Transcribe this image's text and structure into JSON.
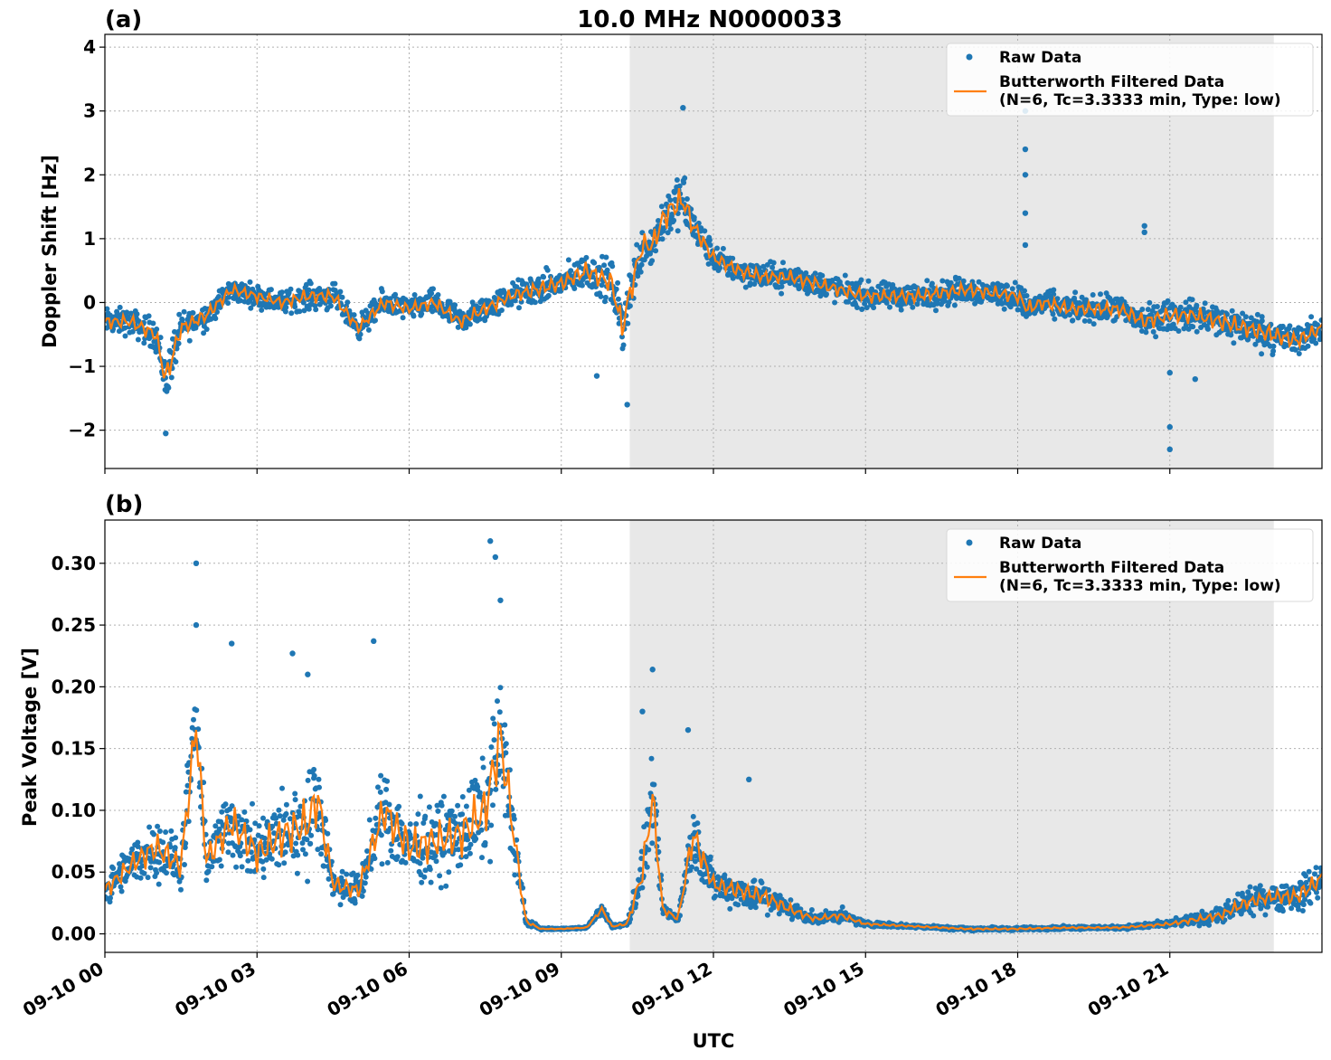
{
  "figure": {
    "title": "10.0 MHz N0000033",
    "xlabel": "UTC",
    "x_range_hours": [
      0,
      24
    ],
    "x_ticks": [
      {
        "hour": 0,
        "label": "09-10 00"
      },
      {
        "hour": 3,
        "label": "09-10 03"
      },
      {
        "hour": 6,
        "label": "09-10 06"
      },
      {
        "hour": 9,
        "label": "09-10 09"
      },
      {
        "hour": 12,
        "label": "09-10 12"
      },
      {
        "hour": 15,
        "label": "09-10 15"
      },
      {
        "hour": 18,
        "label": "09-10 18"
      },
      {
        "hour": 21,
        "label": "09-10 21"
      }
    ],
    "shaded_region_hours": [
      10.35,
      23.05
    ],
    "colors": {
      "raw": "#1f77b4",
      "filtered": "#ff7f0e",
      "shade": "#e8e8e8",
      "grid": "#b0b0b0"
    }
  },
  "legend": {
    "raw_label": "Raw Data",
    "filtered_label_line1": "Butterworth Filtered Data",
    "filtered_label_line2": "(N=6, Tc=3.3333 min, Type: low)"
  },
  "chart_data": [
    {
      "type": "scatter",
      "panel_label": "(a)",
      "ylabel": "Doppler Shift [Hz]",
      "ylim": [
        -2.6,
        4.2
      ],
      "y_ticks": [
        -2,
        -1,
        0,
        1,
        2,
        3,
        4
      ],
      "y_tick_labels": [
        "−2",
        "−1",
        "0",
        "1",
        "2",
        "3",
        "4"
      ],
      "grid": true,
      "legend_position": "top-right",
      "series": [
        {
          "name": "Raw Data",
          "x_hours": [
            0,
            0.5,
            1,
            1.2,
            1.5,
            2,
            2.5,
            3,
            3.5,
            4,
            4.5,
            5,
            5.5,
            6,
            6.5,
            7,
            7.5,
            8,
            8.5,
            9,
            9.5,
            10,
            10.2,
            10.4,
            10.6,
            10.8,
            11,
            11.2,
            11.4,
            11.6,
            12,
            12.5,
            13,
            13.5,
            14,
            15,
            16,
            17,
            18,
            18.2,
            18.5,
            19,
            19.5,
            20,
            20.5,
            21,
            21.5,
            22,
            22.5,
            23,
            23.5,
            24
          ],
          "y": [
            -0.3,
            -0.3,
            -0.5,
            -1.2,
            -0.4,
            -0.2,
            0.2,
            0.1,
            0.0,
            0.1,
            0.1,
            -0.4,
            0.0,
            -0.1,
            0.0,
            -0.3,
            -0.1,
            0.1,
            0.2,
            0.3,
            0.5,
            0.3,
            -0.4,
            0.3,
            0.9,
            0.9,
            1.3,
            1.5,
            1.6,
            1.2,
            0.7,
            0.5,
            0.4,
            0.4,
            0.3,
            0.1,
            0.1,
            0.2,
            0.1,
            -0.1,
            0.0,
            -0.1,
            -0.1,
            -0.1,
            -0.3,
            -0.2,
            -0.2,
            -0.3,
            -0.4,
            -0.5,
            -0.6,
            -0.4
          ],
          "spread": [
            0.3,
            0.3,
            0.35,
            0.6,
            0.35,
            0.3,
            0.25,
            0.25,
            0.25,
            0.3,
            0.3,
            0.25,
            0.3,
            0.25,
            0.3,
            0.3,
            0.3,
            0.3,
            0.35,
            0.35,
            0.4,
            0.5,
            0.6,
            0.6,
            0.5,
            0.5,
            0.55,
            0.6,
            0.6,
            0.45,
            0.3,
            0.3,
            0.3,
            0.3,
            0.3,
            0.3,
            0.3,
            0.3,
            0.3,
            0.35,
            0.3,
            0.3,
            0.3,
            0.3,
            0.35,
            0.35,
            0.35,
            0.4,
            0.4,
            0.4,
            0.35,
            0.3
          ],
          "outliers": [
            [
              1.2,
              -2.05
            ],
            [
              9.7,
              -1.15
            ],
            [
              10.3,
              -1.6
            ],
            [
              11.4,
              3.05
            ],
            [
              18.15,
              3.0
            ],
            [
              18.15,
              2.4
            ],
            [
              18.15,
              2.0
            ],
            [
              18.15,
              1.4
            ],
            [
              18.15,
              0.9
            ],
            [
              20.5,
              1.2
            ],
            [
              20.5,
              1.1
            ],
            [
              21.0,
              -1.1
            ],
            [
              21.0,
              -1.95
            ],
            [
              21.0,
              -2.3
            ],
            [
              21.5,
              -1.2
            ]
          ]
        },
        {
          "name": "Butterworth Filtered Data",
          "x_hours": [
            0,
            0.5,
            1,
            1.2,
            1.5,
            2,
            2.5,
            3,
            3.5,
            4,
            4.5,
            5,
            5.5,
            6,
            6.5,
            7,
            7.5,
            8,
            8.5,
            9,
            9.5,
            10,
            10.2,
            10.4,
            10.6,
            10.8,
            11,
            11.2,
            11.4,
            11.6,
            12,
            12.5,
            13,
            13.5,
            14,
            15,
            16,
            17,
            18,
            18.2,
            18.5,
            19,
            19.5,
            20,
            20.5,
            21,
            21.5,
            22,
            22.5,
            23,
            23.5,
            24
          ],
          "y": [
            -0.3,
            -0.3,
            -0.5,
            -1.2,
            -0.4,
            -0.2,
            0.2,
            0.1,
            0.0,
            0.1,
            0.1,
            -0.4,
            0.0,
            -0.1,
            0.0,
            -0.3,
            -0.1,
            0.1,
            0.2,
            0.3,
            0.5,
            0.3,
            -0.4,
            0.3,
            0.9,
            0.9,
            1.3,
            1.5,
            1.6,
            1.2,
            0.7,
            0.5,
            0.4,
            0.4,
            0.3,
            0.1,
            0.1,
            0.2,
            0.1,
            -0.1,
            0.0,
            -0.1,
            -0.1,
            -0.1,
            -0.3,
            -0.2,
            -0.2,
            -0.3,
            -0.4,
            -0.5,
            -0.6,
            -0.4
          ]
        }
      ]
    },
    {
      "type": "scatter",
      "panel_label": "(b)",
      "ylabel": "Peak Voltage [V]",
      "ylim": [
        -0.015,
        0.335
      ],
      "y_ticks": [
        0.0,
        0.05,
        0.1,
        0.15,
        0.2,
        0.25,
        0.3
      ],
      "y_tick_labels": [
        "0.00",
        "0.05",
        "0.10",
        "0.15",
        "0.20",
        "0.25",
        "0.30"
      ],
      "grid": true,
      "legend_position": "top-right",
      "series": [
        {
          "name": "Raw Data",
          "x_hours": [
            0,
            0.5,
            1,
            1.5,
            1.8,
            2,
            2.5,
            3,
            3.5,
            4,
            4.2,
            4.5,
            5,
            5.5,
            6,
            6.5,
            7,
            7.5,
            7.8,
            8,
            8.3,
            8.6,
            9,
            9.5,
            9.8,
            10,
            10.3,
            10.6,
            10.8,
            11,
            11.3,
            11.6,
            12,
            12.5,
            13,
            13.5,
            14,
            14.5,
            15,
            16,
            17,
            18,
            19,
            20,
            21,
            22,
            22.5,
            23,
            23.5,
            24
          ],
          "y": [
            0.035,
            0.055,
            0.07,
            0.055,
            0.17,
            0.06,
            0.09,
            0.065,
            0.08,
            0.09,
            0.11,
            0.04,
            0.035,
            0.1,
            0.07,
            0.075,
            0.08,
            0.1,
            0.16,
            0.1,
            0.01,
            0.004,
            0.004,
            0.005,
            0.02,
            0.006,
            0.008,
            0.05,
            0.11,
            0.02,
            0.012,
            0.08,
            0.04,
            0.035,
            0.03,
            0.02,
            0.012,
            0.015,
            0.008,
            0.006,
            0.004,
            0.004,
            0.005,
            0.005,
            0.008,
            0.015,
            0.025,
            0.03,
            0.03,
            0.045
          ],
          "spread": [
            0.02,
            0.025,
            0.035,
            0.03,
            0.06,
            0.03,
            0.045,
            0.04,
            0.05,
            0.055,
            0.055,
            0.02,
            0.02,
            0.05,
            0.045,
            0.045,
            0.05,
            0.06,
            0.075,
            0.05,
            0.005,
            0.001,
            0.001,
            0.001,
            0.006,
            0.002,
            0.003,
            0.03,
            0.05,
            0.01,
            0.004,
            0.04,
            0.02,
            0.02,
            0.02,
            0.012,
            0.006,
            0.008,
            0.003,
            0.002,
            0.002,
            0.002,
            0.002,
            0.002,
            0.004,
            0.01,
            0.015,
            0.015,
            0.02,
            0.02
          ],
          "outliers": [
            [
              1.8,
              0.3
            ],
            [
              1.8,
              0.25
            ],
            [
              2.5,
              0.235
            ],
            [
              3.7,
              0.227
            ],
            [
              4.0,
              0.21
            ],
            [
              5.3,
              0.237
            ],
            [
              7.6,
              0.318
            ],
            [
              7.7,
              0.305
            ],
            [
              7.8,
              0.27
            ],
            [
              10.6,
              0.18
            ],
            [
              10.8,
              0.214
            ],
            [
              11.5,
              0.165
            ],
            [
              12.7,
              0.125
            ]
          ]
        },
        {
          "name": "Butterworth Filtered Data",
          "x_hours": [
            0,
            0.5,
            1,
            1.5,
            1.8,
            2,
            2.5,
            3,
            3.5,
            4,
            4.2,
            4.5,
            5,
            5.5,
            6,
            6.5,
            7,
            7.5,
            7.8,
            8,
            8.3,
            8.6,
            9,
            9.5,
            9.8,
            10,
            10.3,
            10.6,
            10.8,
            11,
            11.3,
            11.6,
            12,
            12.5,
            13,
            13.5,
            14,
            14.5,
            15,
            16,
            17,
            18,
            19,
            20,
            21,
            22,
            22.5,
            23,
            23.5,
            24
          ],
          "y": [
            0.035,
            0.055,
            0.07,
            0.055,
            0.17,
            0.06,
            0.09,
            0.065,
            0.08,
            0.09,
            0.11,
            0.04,
            0.035,
            0.1,
            0.07,
            0.075,
            0.08,
            0.1,
            0.16,
            0.1,
            0.01,
            0.004,
            0.004,
            0.005,
            0.02,
            0.006,
            0.008,
            0.05,
            0.11,
            0.02,
            0.012,
            0.08,
            0.04,
            0.035,
            0.03,
            0.02,
            0.012,
            0.015,
            0.008,
            0.006,
            0.004,
            0.004,
            0.005,
            0.005,
            0.008,
            0.015,
            0.025,
            0.03,
            0.03,
            0.045
          ]
        }
      ]
    }
  ]
}
